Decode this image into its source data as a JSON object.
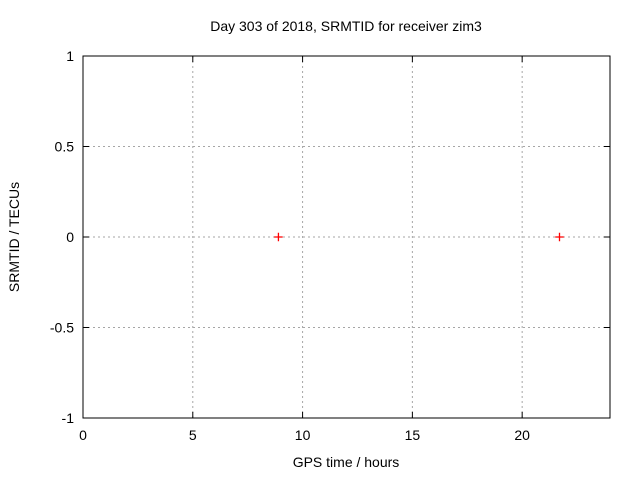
{
  "chart_data": {
    "type": "scatter",
    "title": "Day 303 of 2018, SRMTID for receiver zim3",
    "xlabel": "GPS time / hours",
    "ylabel": "SRMTID / TECUs",
    "xlim": [
      0,
      24
    ],
    "ylim": [
      -1,
      1
    ],
    "xticks": [
      0,
      5,
      10,
      15,
      20
    ],
    "yticks": [
      -1,
      -0.5,
      0,
      0.5,
      1
    ],
    "grid": true,
    "legend": false,
    "series": [
      {
        "name": "SRMTID",
        "marker": "plus",
        "color": "#ff0000",
        "points": [
          {
            "x": 8.9,
            "y": 0.0
          },
          {
            "x": 21.7,
            "y": 0.0
          }
        ]
      }
    ],
    "style": {
      "background": "#ffffff",
      "border_color": "#000000",
      "grid_color": "#a6a6a6",
      "text_color": "#000000",
      "tick_length": 6,
      "marker_half_size": 4.3,
      "marker_stroke_width": 1.3
    }
  }
}
